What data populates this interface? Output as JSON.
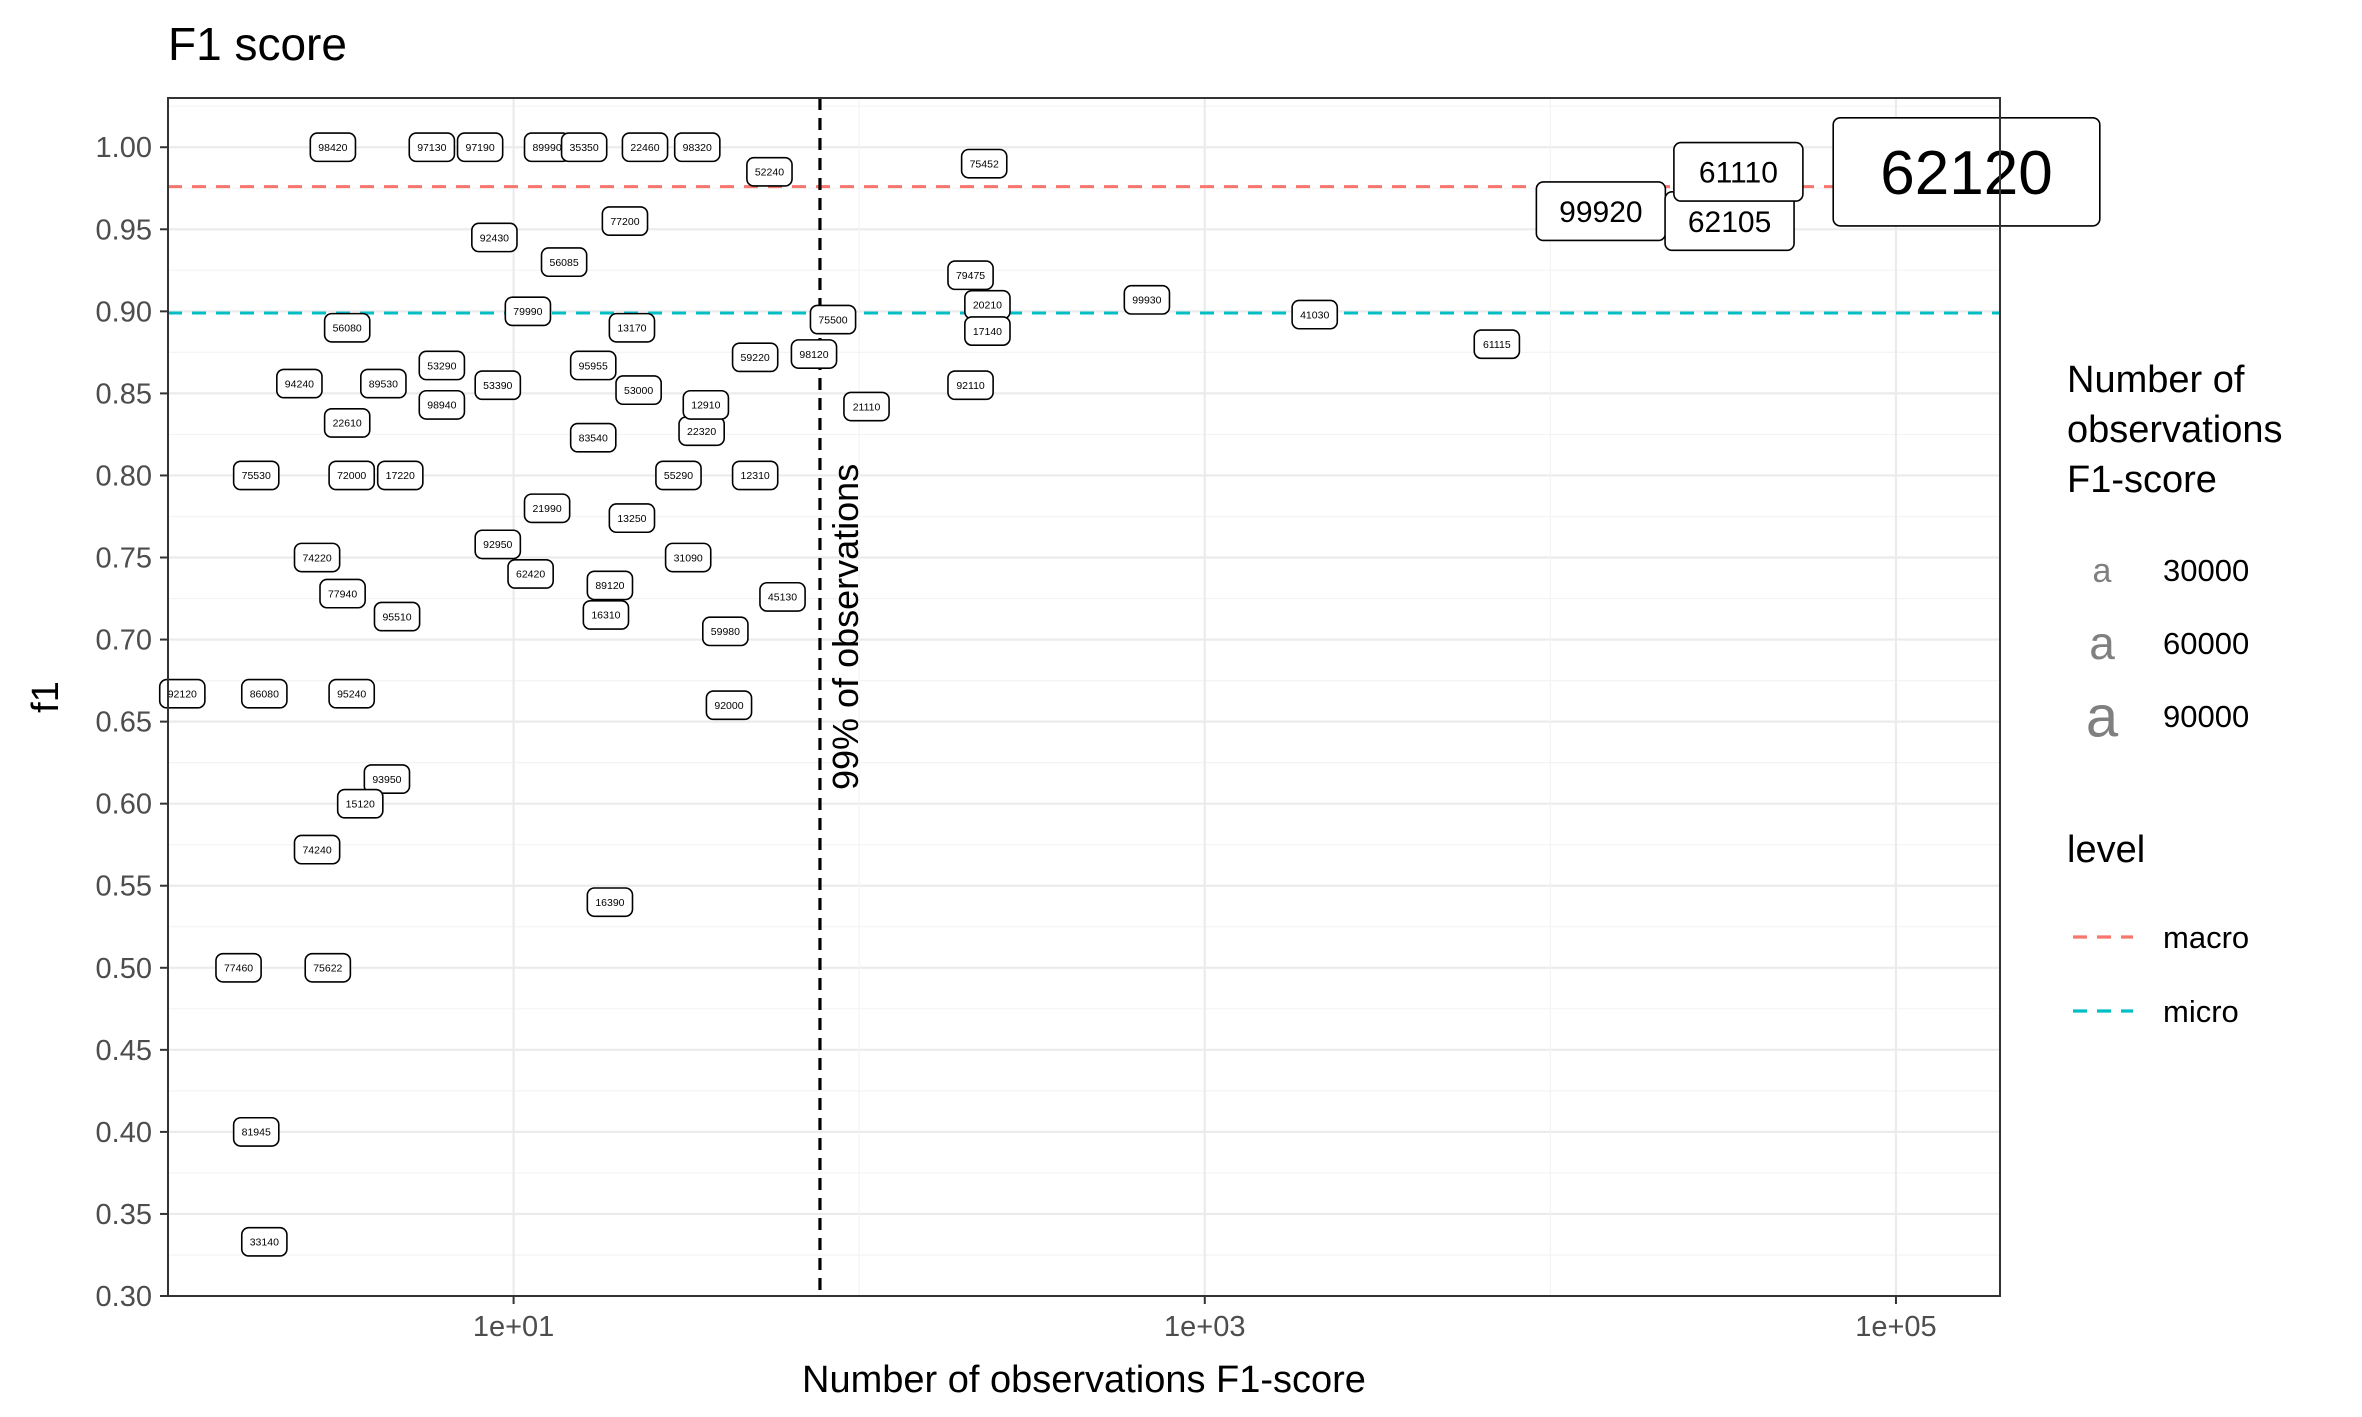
{
  "chart_data": {
    "type": "scatter",
    "title": "F1 score",
    "xlabel": "Number of observations F1-score",
    "ylabel": "f1",
    "xscale": "log10",
    "xlim": [
      1,
      200000
    ],
    "ylim": [
      0.3,
      1.03
    ],
    "x_ticks": [
      "1e+01",
      "1e+03",
      "1e+05"
    ],
    "y_ticks": [
      "0.30",
      "0.35",
      "0.40",
      "0.45",
      "0.50",
      "0.55",
      "0.60",
      "0.65",
      "0.70",
      "0.75",
      "0.80",
      "0.85",
      "0.90",
      "0.95",
      "1.00"
    ],
    "grid": true,
    "reference_lines": [
      {
        "name": "macro",
        "axis": "y",
        "value": 0.976,
        "color": "#F8766D",
        "style": "dashed"
      },
      {
        "name": "micro",
        "axis": "y",
        "value": 0.899,
        "color": "#00BFC4",
        "style": "dashed"
      },
      {
        "axis": "x",
        "value": 77,
        "color": "#000000",
        "style": "dashed",
        "label": "99% of observations"
      }
    ],
    "legend_size": {
      "title": "Number of\nobservations\nF1-score",
      "entries": [
        "30000",
        "60000",
        "90000"
      ]
    },
    "legend_level": {
      "title": "level",
      "entries": [
        {
          "label": "macro",
          "color": "#F8766D"
        },
        {
          "label": "micro",
          "color": "#00BFC4"
        }
      ]
    },
    "legend_position": "right",
    "points": [
      {
        "label": "98420",
        "x": 3,
        "y": 1.0
      },
      {
        "label": "97130",
        "x": 5.8,
        "y": 1.0
      },
      {
        "label": "97190",
        "x": 8,
        "y": 1.0
      },
      {
        "label": "89990",
        "x": 12.5,
        "y": 1.0
      },
      {
        "label": "35350",
        "x": 16,
        "y": 1.0
      },
      {
        "label": "22460",
        "x": 24,
        "y": 1.0
      },
      {
        "label": "98320",
        "x": 34,
        "y": 1.0
      },
      {
        "label": "56080",
        "x": 3.3,
        "y": 0.89
      },
      {
        "label": "94240",
        "x": 2.4,
        "y": 0.856
      },
      {
        "label": "89530",
        "x": 4.2,
        "y": 0.856
      },
      {
        "label": "53290",
        "x": 6.2,
        "y": 0.867
      },
      {
        "label": "53390",
        "x": 9,
        "y": 0.855
      },
      {
        "label": "98940",
        "x": 6.2,
        "y": 0.843
      },
      {
        "label": "22610",
        "x": 3.3,
        "y": 0.832
      },
      {
        "label": "75530",
        "x": 1.8,
        "y": 0.8
      },
      {
        "label": "72000",
        "x": 3.4,
        "y": 0.8
      },
      {
        "label": "17220",
        "x": 4.7,
        "y": 0.8
      },
      {
        "label": "74220",
        "x": 2.7,
        "y": 0.75
      },
      {
        "label": "77940",
        "x": 3.2,
        "y": 0.728
      },
      {
        "label": "95510",
        "x": 4.6,
        "y": 0.714
      },
      {
        "label": "92120",
        "x": 1.1,
        "y": 0.667
      },
      {
        "label": "86080",
        "x": 1.9,
        "y": 0.667
      },
      {
        "label": "95240",
        "x": 3.4,
        "y": 0.667
      },
      {
        "label": "93950",
        "x": 4.3,
        "y": 0.615
      },
      {
        "label": "15120",
        "x": 3.6,
        "y": 0.6
      },
      {
        "label": "74240",
        "x": 2.7,
        "y": 0.572
      },
      {
        "label": "77460",
        "x": 1.6,
        "y": 0.5
      },
      {
        "label": "75622",
        "x": 2.9,
        "y": 0.5
      },
      {
        "label": "81945",
        "x": 1.8,
        "y": 0.4
      },
      {
        "label": "33140",
        "x": 1.9,
        "y": 0.333
      },
      {
        "label": "92430",
        "x": 8.8,
        "y": 0.945
      },
      {
        "label": "79990",
        "x": 11,
        "y": 0.9
      },
      {
        "label": "56085",
        "x": 14,
        "y": 0.93
      },
      {
        "label": "13170",
        "x": 22,
        "y": 0.89
      },
      {
        "label": "95955",
        "x": 17,
        "y": 0.867
      },
      {
        "label": "53000",
        "x": 23,
        "y": 0.852
      },
      {
        "label": "83540",
        "x": 17,
        "y": 0.823
      },
      {
        "label": "22320",
        "x": 35,
        "y": 0.827
      },
      {
        "label": "12910",
        "x": 36,
        "y": 0.843
      },
      {
        "label": "55290",
        "x": 30,
        "y": 0.8
      },
      {
        "label": "12310",
        "x": 50,
        "y": 0.8
      },
      {
        "label": "21990",
        "x": 12.5,
        "y": 0.78
      },
      {
        "label": "13250",
        "x": 22,
        "y": 0.774
      },
      {
        "label": "92950",
        "x": 9,
        "y": 0.758
      },
      {
        "label": "31090",
        "x": 32,
        "y": 0.75
      },
      {
        "label": "62420",
        "x": 11.2,
        "y": 0.74
      },
      {
        "label": "89120",
        "x": 19,
        "y": 0.733
      },
      {
        "label": "16310",
        "x": 18.5,
        "y": 0.715
      },
      {
        "label": "59980",
        "x": 41,
        "y": 0.705
      },
      {
        "label": "45130",
        "x": 60,
        "y": 0.726
      },
      {
        "label": "92000",
        "x": 42,
        "y": 0.66
      },
      {
        "label": "16390",
        "x": 19,
        "y": 0.54
      },
      {
        "label": "59220",
        "x": 50,
        "y": 0.872
      },
      {
        "label": "77200",
        "x": 21,
        "y": 0.955
      },
      {
        "label": "52240",
        "x": 55,
        "y": 0.985
      },
      {
        "label": "75500",
        "x": 84,
        "y": 0.895
      },
      {
        "label": "98120",
        "x": 74,
        "y": 0.874
      },
      {
        "label": "21110",
        "x": 105,
        "y": 0.842
      },
      {
        "label": "75452",
        "x": 230,
        "y": 0.99
      },
      {
        "label": "79475",
        "x": 210,
        "y": 0.922
      },
      {
        "label": "20210",
        "x": 235,
        "y": 0.904
      },
      {
        "label": "17140",
        "x": 235,
        "y": 0.888
      },
      {
        "label": "92110",
        "x": 210,
        "y": 0.855
      },
      {
        "label": "99930",
        "x": 680,
        "y": 0.907
      },
      {
        "label": "41030",
        "x": 2080,
        "y": 0.898
      },
      {
        "label": "61115",
        "x": 7000,
        "y": 0.88
      },
      {
        "label": "99920",
        "x": 14000,
        "y": 0.961,
        "size": "large"
      },
      {
        "label": "62105",
        "x": 33000,
        "y": 0.955,
        "size": "large"
      },
      {
        "label": "61110",
        "x": 35000,
        "y": 0.985,
        "size": "large"
      },
      {
        "label": "62120",
        "x": 160000,
        "y": 0.985,
        "size": "xlarge"
      }
    ]
  }
}
